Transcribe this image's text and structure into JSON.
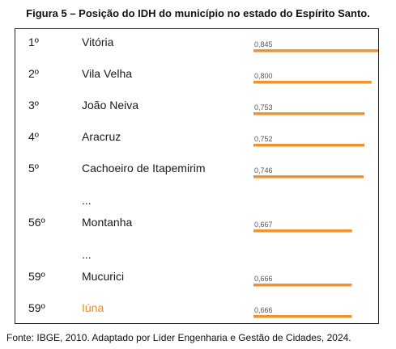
{
  "figure_title": "Figura 5 – Posição do IDH do município no estado do Espírito Santo.",
  "source_note": "Fonte: IBGE, 2010. Adaptado por Líder Engenharia e Gestão de Cidades, 2024.",
  "ellipsis": "...",
  "colors": {
    "bar": "#f0922e",
    "highlight_text": "#e98a2b",
    "text": "#1a1a1a",
    "value_text": "#555555",
    "border": "#222222"
  },
  "chart_data": {
    "type": "bar",
    "orientation": "horizontal",
    "title": "Figura 5 – Posição do IDH do município no estado do Espírito Santo.",
    "xlabel": "",
    "ylabel": "",
    "grid": false,
    "legend": "none",
    "xlim": [
      0,
      0.845
    ],
    "rows": [
      {
        "rank": "1º",
        "name": "Vitória",
        "value": 0.845,
        "label": "0,845",
        "highlight": false
      },
      {
        "rank": "2º",
        "name": "Vila Velha",
        "value": 0.8,
        "label": "0,800",
        "highlight": false
      },
      {
        "rank": "3º",
        "name": "João Neiva",
        "value": 0.753,
        "label": "0,753",
        "highlight": false
      },
      {
        "rank": "4º",
        "name": "Aracruz",
        "value": 0.752,
        "label": "0,752",
        "highlight": false
      },
      {
        "rank": "5º",
        "name": "Cachoeiro de Itapemirim",
        "value": 0.746,
        "label": "0,746",
        "highlight": false
      },
      {
        "ellipsis": true
      },
      {
        "rank": "56º",
        "name": "Montanha",
        "value": 0.667,
        "label": "0,667",
        "highlight": false
      },
      {
        "ellipsis": true
      },
      {
        "rank": "59º",
        "name": "Mucurici",
        "value": 0.666,
        "label": "0,666",
        "highlight": false
      },
      {
        "rank": "59º",
        "name": "Iúna",
        "value": 0.666,
        "label": "0,666",
        "highlight": true
      }
    ]
  }
}
